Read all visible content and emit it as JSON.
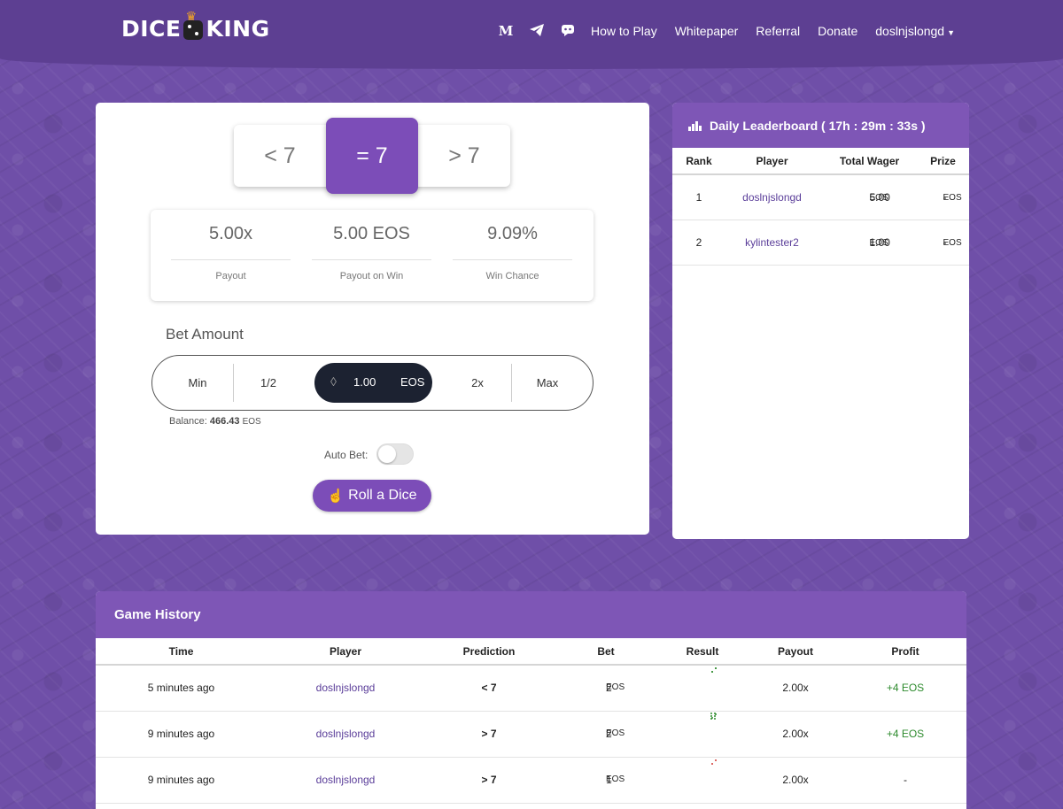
{
  "brand": {
    "name_left": "DICE",
    "name_right": "KING"
  },
  "nav": {
    "medium_icon_text": "M",
    "links": [
      "How to Play",
      "Whitepaper",
      "Referral",
      "Donate"
    ],
    "user": "doslnjslongd"
  },
  "prediction": {
    "less": "< 7",
    "equal": "= 7",
    "greater": "> 7",
    "selected": "= 7"
  },
  "stats": [
    {
      "value": "5.00x",
      "label": "Payout"
    },
    {
      "value": "5.00 EOS",
      "label": "Payout on Win"
    },
    {
      "value": "9.09%",
      "label": "Win Chance"
    }
  ],
  "bet": {
    "label": "Bet Amount",
    "min": "Min",
    "half": "1/2",
    "double": "2x",
    "max": "Max",
    "amount": "1.00",
    "unit": "EOS",
    "balance_label": "Balance:",
    "balance_value": "466.43",
    "balance_unit": "EOS",
    "autobet_label": "Auto Bet:",
    "autobet_on": false,
    "roll_label": "Roll a Dice"
  },
  "leaderboard": {
    "title": "Daily Leaderboard ( 17h : 29m : 33s )",
    "columns": [
      "Rank",
      "Player",
      "Total Wager",
      "Prize"
    ],
    "rows": [
      {
        "rank": "1",
        "player": "doslnjslongd",
        "wager": "5.00",
        "wager_unit": "EOS",
        "prize": "-",
        "prize_unit": "EOS"
      },
      {
        "rank": "2",
        "player": "kylintester2",
        "wager": "1.00",
        "wager_unit": "EOS",
        "prize": "-",
        "prize_unit": "EOS"
      }
    ]
  },
  "history": {
    "title": "Game History",
    "columns": [
      "Time",
      "Player",
      "Prediction",
      "Bet",
      "Result",
      "Payout",
      "Profit"
    ],
    "rows": [
      {
        "time": "5 minutes ago",
        "player": "doslnjslongd",
        "prediction": "< 7",
        "bet": "2",
        "bet_unit": "EOS",
        "result_color": "#2e8b2e",
        "payout": "2.00x",
        "profit": "+4 EOS",
        "profit_positive": true
      },
      {
        "time": "9 minutes ago",
        "player": "doslnjslongd",
        "prediction": "> 7",
        "bet": "2",
        "bet_unit": "EOS",
        "result_color": "#2e8b2e",
        "payout": "2.00x",
        "profit": "+4 EOS",
        "profit_positive": true
      },
      {
        "time": "9 minutes ago",
        "player": "doslnjslongd",
        "prediction": "> 7",
        "bet": "1",
        "bet_unit": "EOS",
        "result_color": "#d9534f",
        "payout": "2.00x",
        "profit": "-",
        "profit_positive": false
      }
    ]
  },
  "colors": {
    "purple": "#7c4db8",
    "header": "#5d3f92",
    "dark": "#1c2231",
    "win": "#2e8b2e",
    "loss": "#d9534f"
  }
}
